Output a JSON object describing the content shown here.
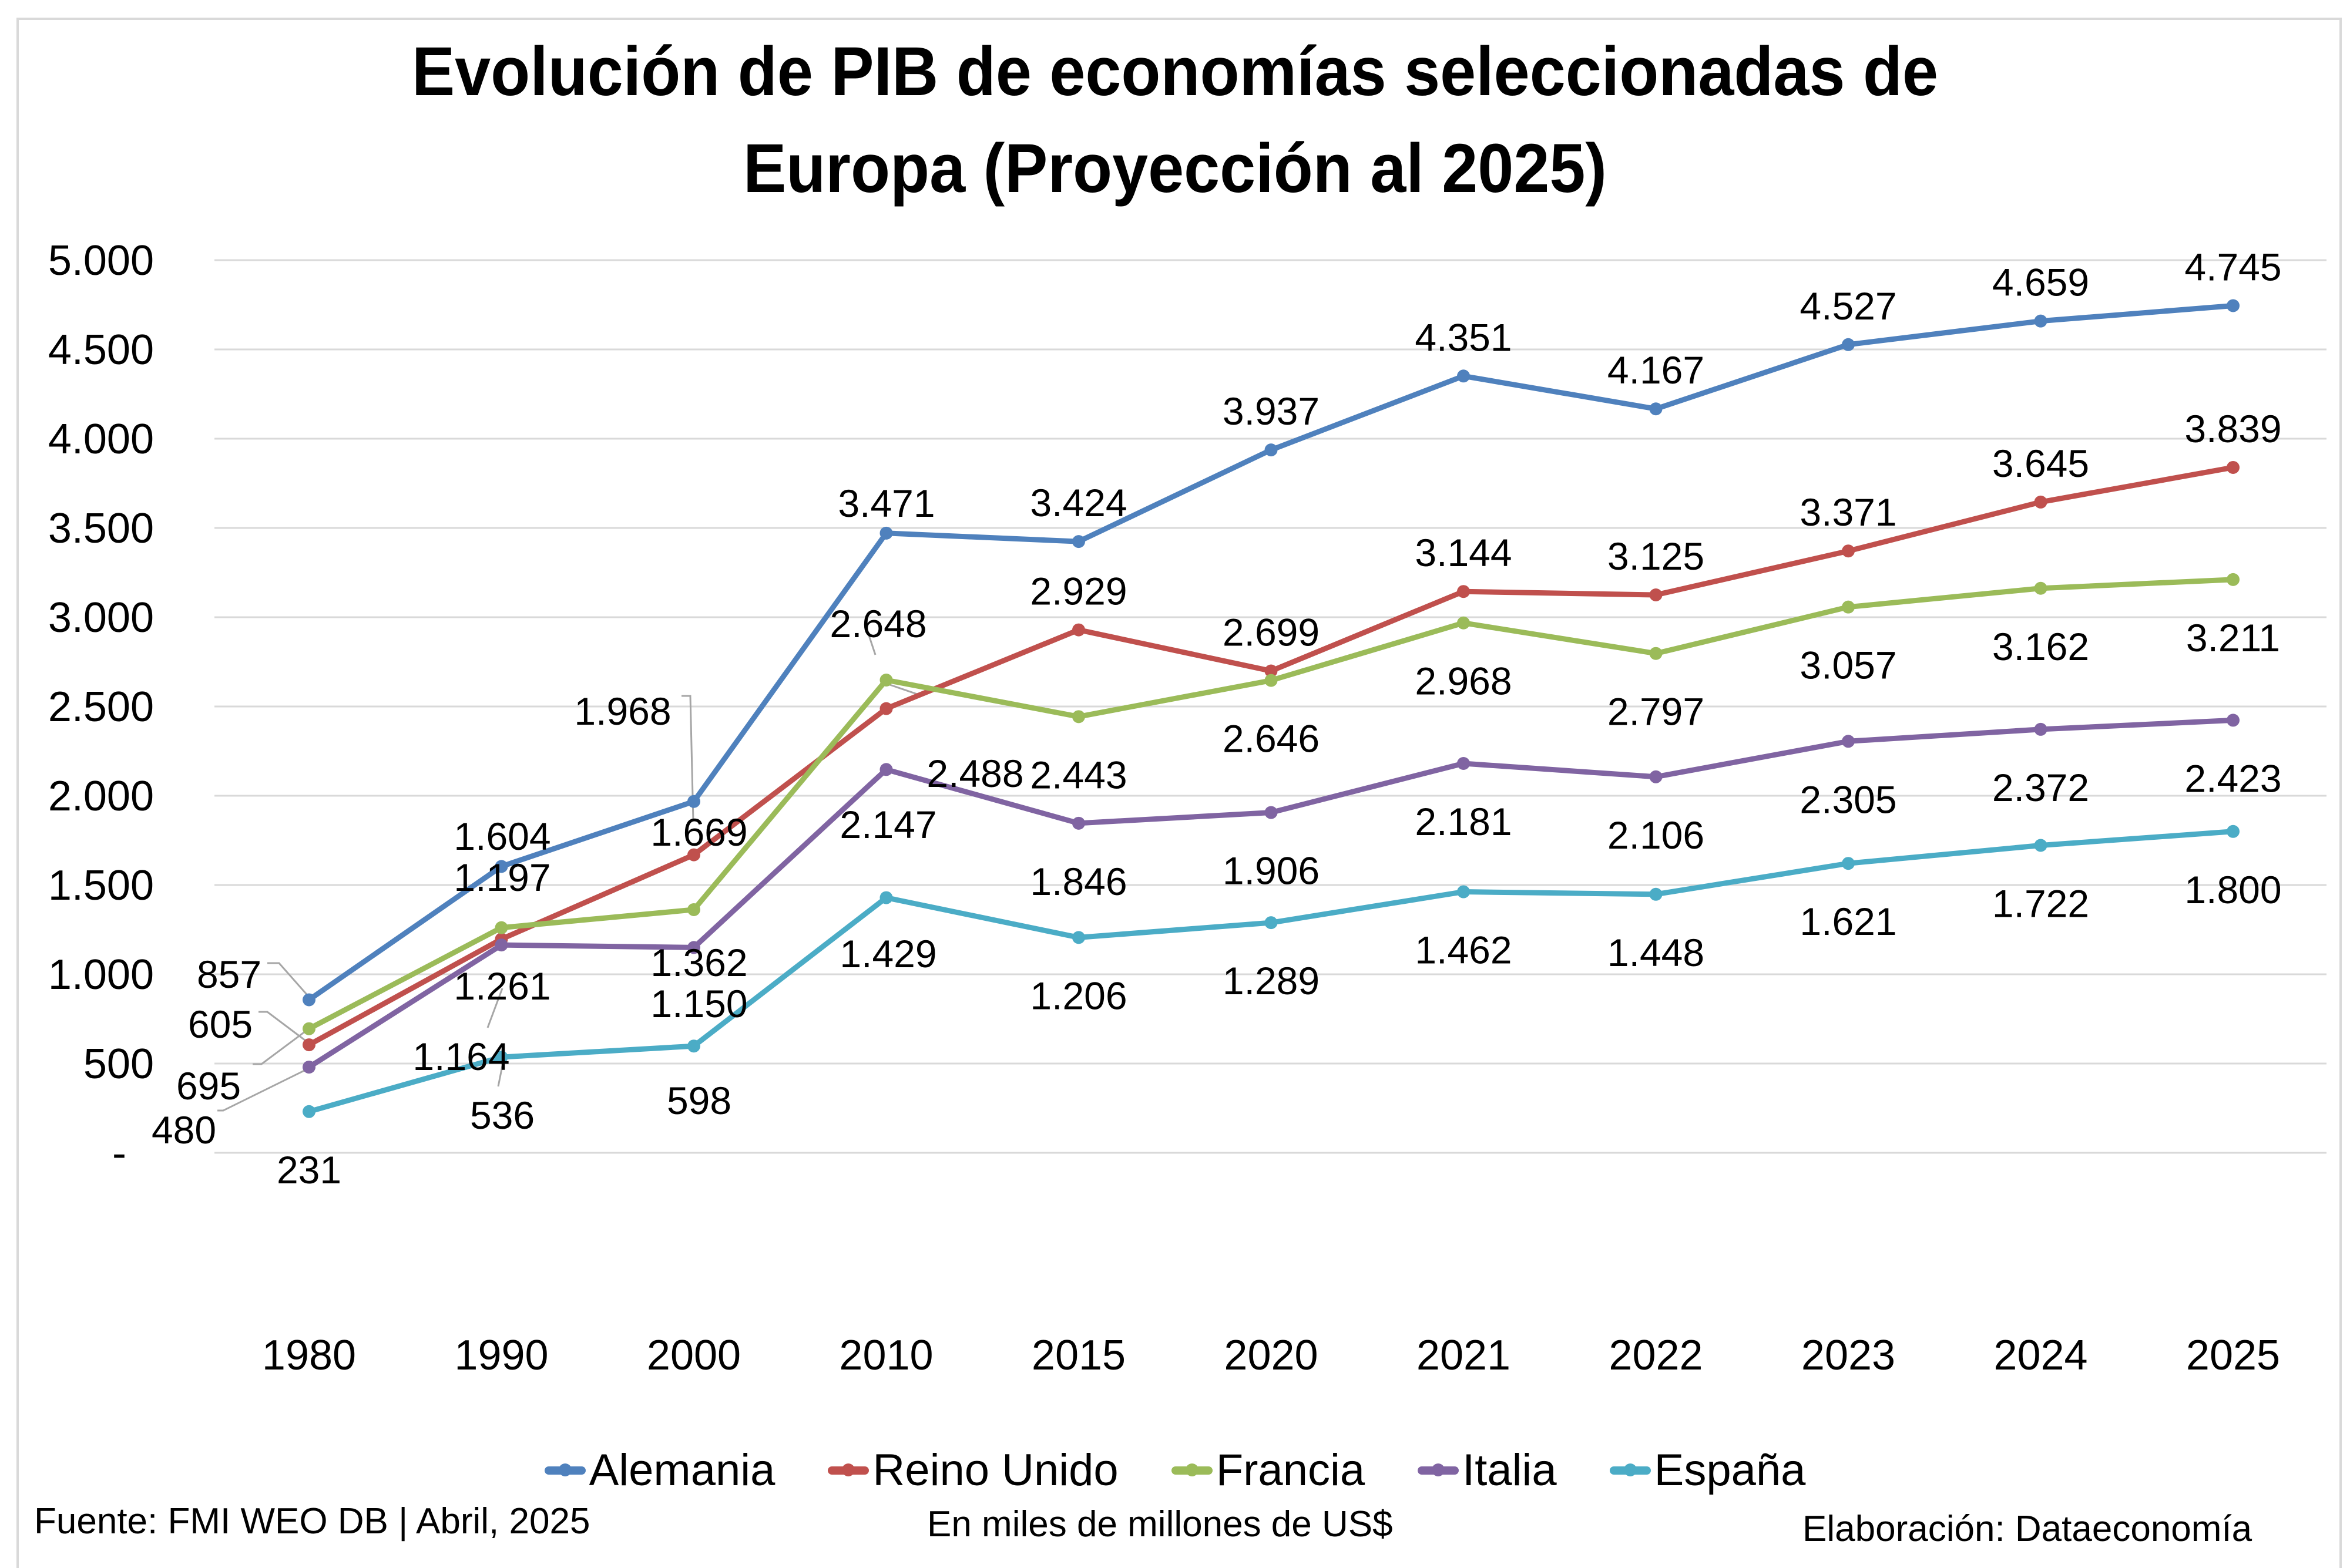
{
  "chart_data": {
    "type": "line",
    "title": "Evolución de PIB de economías seleccionadas de Europa (Proyección al 2025)",
    "title_lines": [
      "Evolución de PIB de economías seleccionadas de",
      "Europa (Proyección al 2025)"
    ],
    "xlabel": "",
    "ylabel": "",
    "categories": [
      "1980",
      "1990",
      "2000",
      "2010",
      "2015",
      "2020",
      "2021",
      "2022",
      "2023",
      "2024",
      "2025"
    ],
    "ylim": [
      0,
      5000
    ],
    "yticks": [
      0,
      500,
      1000,
      1500,
      2000,
      2500,
      3000,
      3500,
      4000,
      4500,
      5000
    ],
    "ytick_labels": [
      "-",
      "500",
      "1.000",
      "1.500",
      "2.000",
      "2.500",
      "3.000",
      "3.500",
      "4.000",
      "4.500",
      "5.000"
    ],
    "grid": true,
    "legend_position": "bottom",
    "series": [
      {
        "name": "Alemania",
        "color": "#4f81bd",
        "values": [
          857,
          1604,
          1968,
          3471,
          3424,
          3937,
          4351,
          4167,
          4527,
          4659,
          4745
        ],
        "labels": [
          "857",
          "1.604",
          "1.968",
          "3.471",
          "3.424",
          "3.937",
          "4.351",
          "4.167",
          "4.527",
          "4.659",
          "4.745"
        ]
      },
      {
        "name": "Reino Unido",
        "color": "#c0504d",
        "values": [
          605,
          1197,
          1669,
          2488,
          2929,
          2699,
          3144,
          3125,
          3371,
          3645,
          3839
        ],
        "labels": [
          "605",
          "1.197",
          "1.669",
          "2.488",
          "2.929",
          "2.699",
          "3.144",
          "3.125",
          "3.371",
          "3.645",
          "3.839"
        ]
      },
      {
        "name": "Francia",
        "color": "#9bbb59",
        "values": [
          695,
          1261,
          1362,
          2648,
          2443,
          2646,
          2968,
          2797,
          3057,
          3162,
          3211
        ],
        "labels": [
          "695",
          "1.261",
          "1.362",
          "2.648",
          "2.443",
          "2.646",
          "2.968",
          "2.797",
          "3.057",
          "3.162",
          "3.211"
        ]
      },
      {
        "name": "Italia",
        "color": "#8064a2",
        "values": [
          480,
          1164,
          1150,
          2147,
          1846,
          1906,
          2181,
          2106,
          2305,
          2372,
          2423
        ],
        "labels": [
          "480",
          "1.164",
          "1.150",
          "2.147",
          "1.846",
          "1.906",
          "2.181",
          "2.106",
          "2.305",
          "2.372",
          "2.423"
        ]
      },
      {
        "name": "España",
        "color": "#4bacc6",
        "values": [
          231,
          536,
          598,
          1429,
          1206,
          1289,
          1462,
          1448,
          1621,
          1722,
          1800
        ],
        "labels": [
          "231",
          "536",
          "598",
          "1.429",
          "1.206",
          "1.289",
          "1.462",
          "1.448",
          "1.621",
          "1.722",
          "1.800"
        ]
      }
    ]
  },
  "footer": {
    "source": "Fuente: FMI WEO DB | Abril, 2025",
    "units": "En miles de millones de US$",
    "credit": "Elaboración: Dataeconomía"
  },
  "colors": {
    "gridline": "#d9d9d9",
    "leader_line": "#a6a6a6"
  }
}
